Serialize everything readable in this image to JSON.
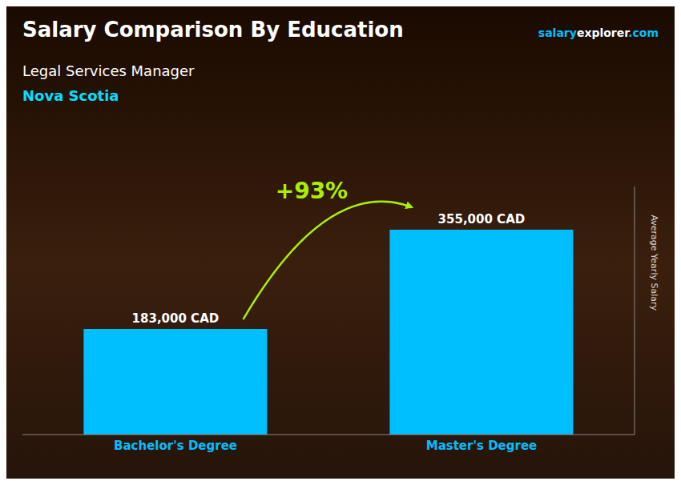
{
  "chart_data": {
    "type": "bar",
    "title": "Salary Comparison By Education",
    "subtitle": "Legal Services Manager",
    "annotations": [
      {
        "text": "Nova Scotia",
        "color": "#00DFFF"
      },
      {
        "text": "+93%",
        "color": "#AAEE00"
      }
    ],
    "source": [
      {
        "text": "salary",
        "color": "#00BFFF"
      },
      {
        "text": "explorer",
        "color": "#FFFFFF"
      },
      {
        "text": ".com",
        "color": "#00BFFF"
      }
    ],
    "ylabel": "Average Yearly Salary",
    "categories": [
      "Bachelor's Degree",
      "Master's Degree"
    ],
    "values": [
      183000,
      355000
    ],
    "value_labels": [
      "183,000 CAD",
      "355,000 CAD"
    ],
    "data_labels": true,
    "color": "#00BFFF",
    "ylim": [
      0,
      430000
    ],
    "tick_labels": "x"
  }
}
